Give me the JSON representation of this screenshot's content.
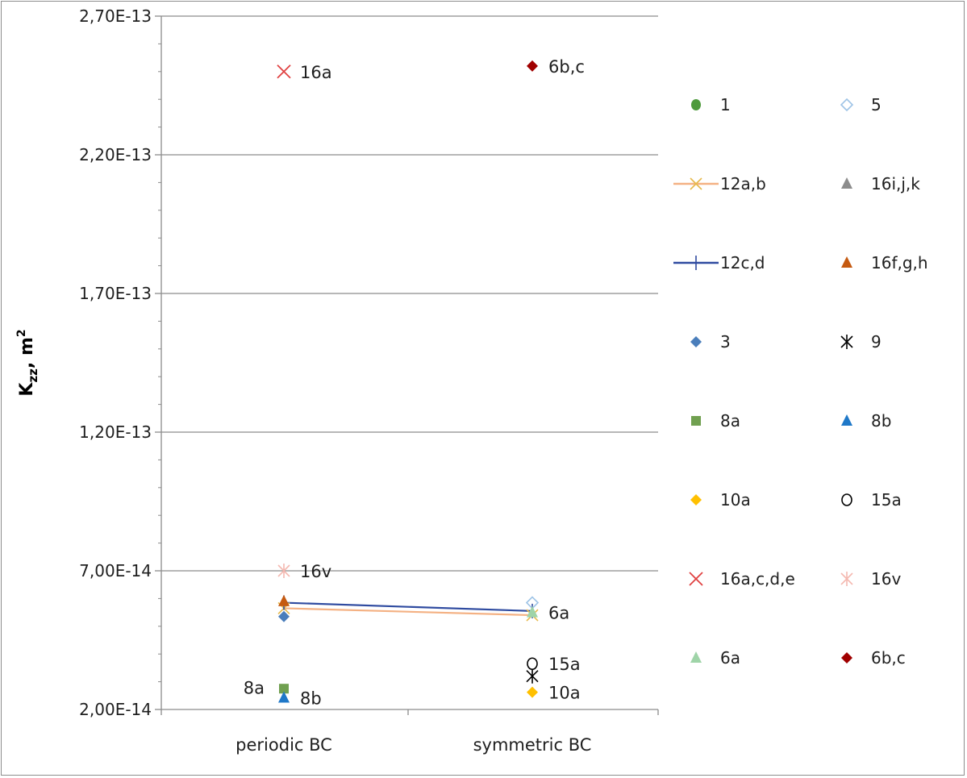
{
  "chart_data": {
    "type": "scatter",
    "ylabel": "K",
    "ylabel_sub": "zz",
    "ylabel_unit": ", m",
    "ylabel_sup": "2",
    "ylim": [
      2e-14,
      2.7e-13
    ],
    "y_major_ticks": [
      {
        "value": 2e-14,
        "label": "2,00E-14"
      },
      {
        "value": 7e-14,
        "label": "7,00E-14"
      },
      {
        "value": 1.2e-13,
        "label": "1,20E-13"
      },
      {
        "value": 1.7e-13,
        "label": "1,70E-13"
      },
      {
        "value": 2.2e-13,
        "label": "2,20E-13"
      },
      {
        "value": 2.7e-13,
        "label": "2,70E-13"
      }
    ],
    "y_minor_step": 1e-14,
    "grid": "horizontal-major",
    "legend_position": "right",
    "categories": [
      "periodic BC",
      "symmetric BC"
    ],
    "series": [
      {
        "name": "1",
        "marker": "circle",
        "color": "#4e9a3c",
        "points": []
      },
      {
        "name": "5",
        "marker": "diamond-open",
        "color": "#9dc3e6",
        "points": [
          {
            "x": "symmetric BC",
            "y": 5.85e-14
          }
        ]
      },
      {
        "name": "12a,b",
        "marker": "x-line",
        "color": "#f4b183",
        "marker_color": "#e6b84a",
        "line": true,
        "points": [
          {
            "x": "periodic BC",
            "y": 5.65e-14
          },
          {
            "x": "symmetric BC",
            "y": 5.4e-14
          }
        ]
      },
      {
        "name": "16i,j,k",
        "marker": "triangle",
        "color": "#8c8c8c",
        "points": []
      },
      {
        "name": "12c,d",
        "marker": "plus-line",
        "color": "#2f4ba0",
        "line": true,
        "points": [
          {
            "x": "periodic BC",
            "y": 5.85e-14
          },
          {
            "x": "symmetric BC",
            "y": 5.55e-14
          }
        ]
      },
      {
        "name": "16f,g,h",
        "marker": "triangle",
        "color": "#c55a11",
        "points": [
          {
            "x": "periodic BC",
            "y": 5.9e-14
          }
        ]
      },
      {
        "name": "3",
        "marker": "diamond",
        "color": "#4a7ebb",
        "points": [
          {
            "x": "periodic BC",
            "y": 5.35e-14
          }
        ]
      },
      {
        "name": "9",
        "marker": "asterisk",
        "color": "#000000",
        "points": [
          {
            "x": "symmetric BC",
            "y": 3.2e-14
          }
        ]
      },
      {
        "name": "8a",
        "marker": "square",
        "color": "#70a050",
        "points": [
          {
            "x": "periodic BC",
            "y": 2.75e-14
          }
        ]
      },
      {
        "name": "8b",
        "marker": "triangle",
        "color": "#1f78c8",
        "points": [
          {
            "x": "periodic BC",
            "y": 2.42e-14
          }
        ]
      },
      {
        "name": "10a",
        "marker": "diamond",
        "color": "#ffc000",
        "points": [
          {
            "x": "symmetric BC",
            "y": 2.62e-14
          }
        ]
      },
      {
        "name": "15a",
        "marker": "circle-open",
        "color": "#000000",
        "points": [
          {
            "x": "symmetric BC",
            "y": 3.65e-14
          }
        ]
      },
      {
        "name": "16a,c,d,e",
        "marker": "x",
        "color": "#e04040",
        "points": [
          {
            "x": "periodic BC",
            "y": 2.5e-13
          }
        ]
      },
      {
        "name": "16v",
        "marker": "asterisk",
        "color": "#f4b8b0",
        "points": [
          {
            "x": "periodic BC",
            "y": 7e-14
          }
        ]
      },
      {
        "name": "6a",
        "marker": "triangle",
        "color": "#9fd4a8",
        "points": [
          {
            "x": "symmetric BC",
            "y": 5.5e-14
          }
        ]
      },
      {
        "name": "6b,c",
        "marker": "diamond",
        "color": "#a00000",
        "points": [
          {
            "x": "symmetric BC",
            "y": 2.52e-13
          }
        ]
      }
    ],
    "annotations": [
      {
        "text": "16a",
        "x": "periodic BC",
        "y": 2.5e-13,
        "side": "right"
      },
      {
        "text": "6b,c",
        "x": "symmetric BC",
        "y": 2.52e-13,
        "side": "right"
      },
      {
        "text": "16v",
        "x": "periodic BC",
        "y": 7e-14,
        "side": "right"
      },
      {
        "text": "6a",
        "x": "symmetric BC",
        "y": 5.5e-14,
        "side": "right"
      },
      {
        "text": "15a",
        "x": "symmetric BC",
        "y": 3.65e-14,
        "side": "right"
      },
      {
        "text": "10a",
        "x": "symmetric BC",
        "y": 2.62e-14,
        "side": "right"
      },
      {
        "text": "8a",
        "x": "periodic BC",
        "y": 2.8e-14,
        "side": "left"
      },
      {
        "text": "8b",
        "x": "periodic BC",
        "y": 2.42e-14,
        "side": "right"
      }
    ]
  }
}
